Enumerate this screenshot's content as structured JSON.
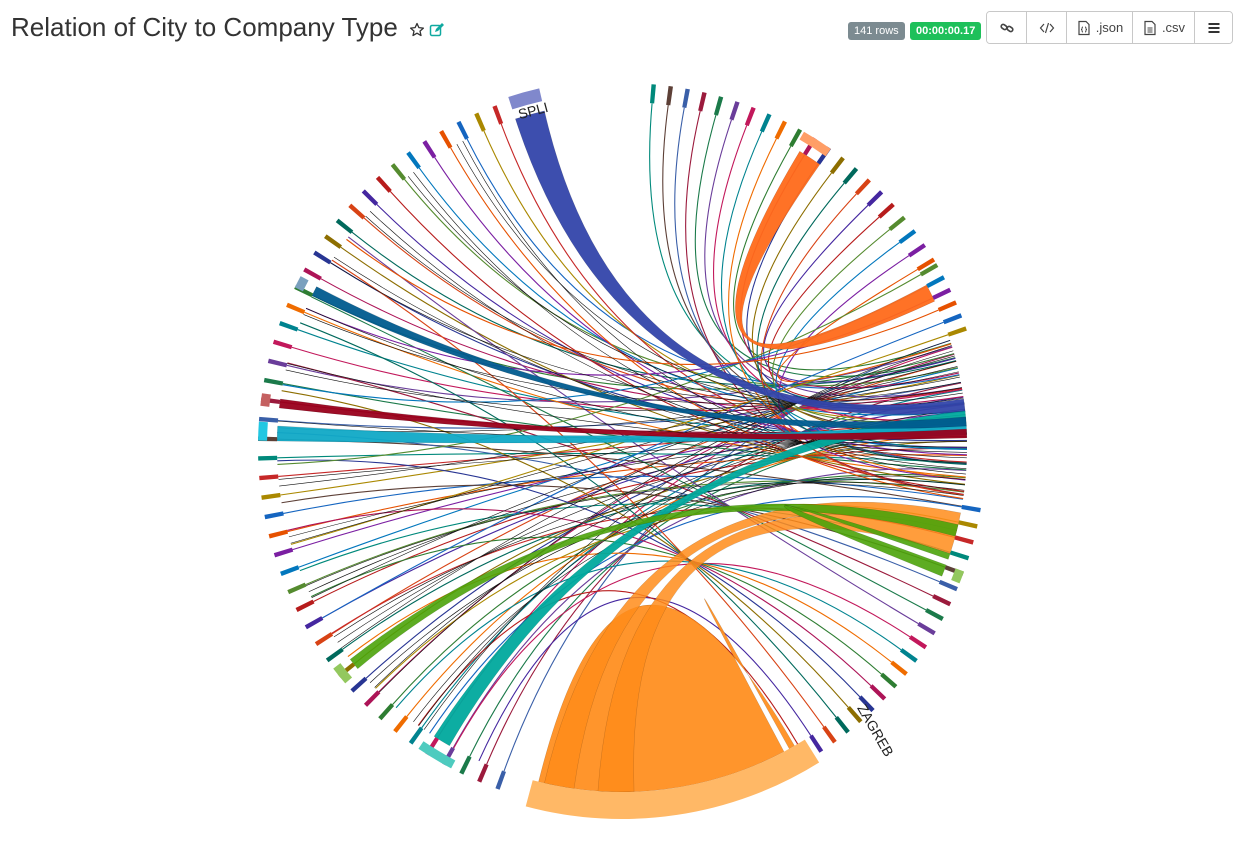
{
  "header": {
    "title": "Relation of City to Company Type",
    "rows_badge": "141 rows",
    "time_badge": "00:00:00.17",
    "buttons": {
      "json_label": ".json",
      "csv_label": ".csv"
    },
    "icons": [
      "star-icon",
      "edit-icon",
      "link-icon",
      "code-icon",
      "json-file-icon",
      "csv-file-icon",
      "menu-icon"
    ]
  },
  "colors": {
    "zagreb": "#ff8c1a",
    "split": "#3344aa",
    "teal": "#00a99d",
    "cyan": "#10a9c6",
    "crimson": "#99001b",
    "navy": "#005b8e",
    "green": "#4ba30a",
    "dark_orange": "#ff6a1a",
    "gray_link": "#555555"
  },
  "chart_data": {
    "type": "chord",
    "title": "",
    "labels": [
      "ZAGREB",
      "SPLI"
    ]
  }
}
